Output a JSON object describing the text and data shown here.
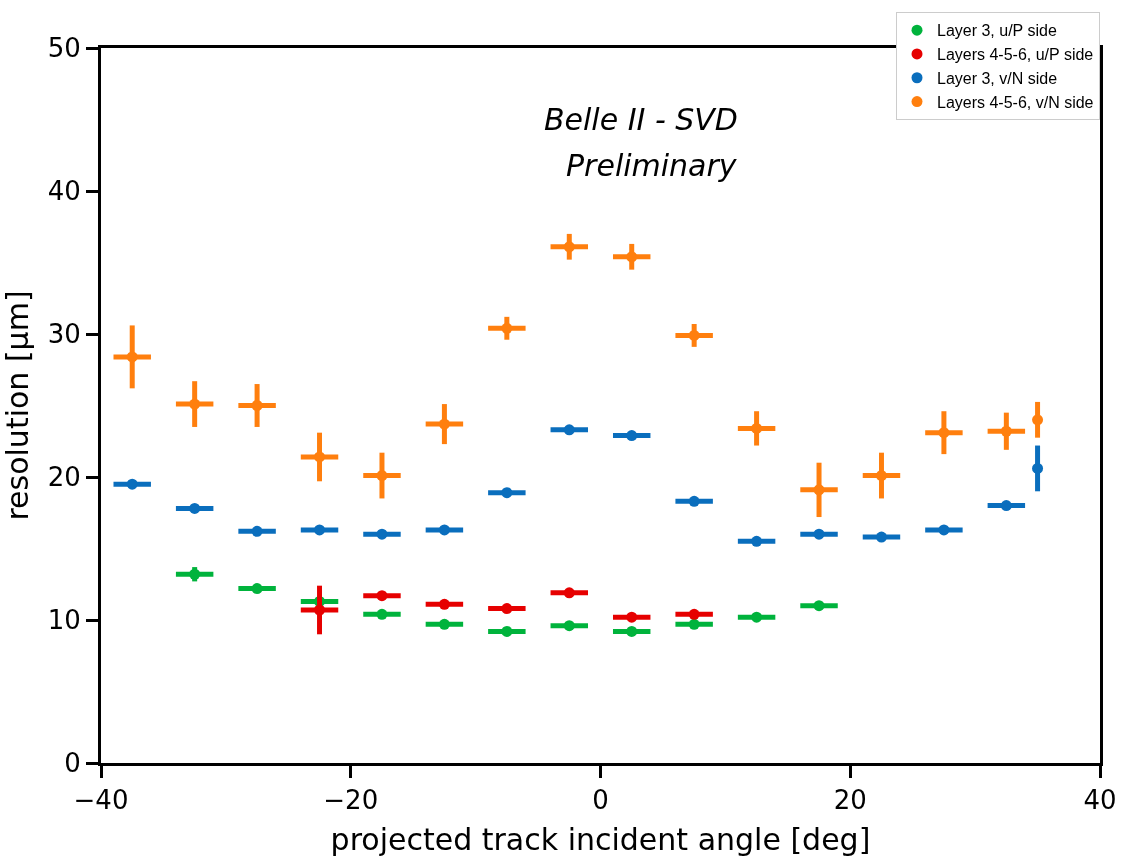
{
  "chart_data": {
    "type": "scatter",
    "xlabel": "projected track incident angle [deg]",
    "ylabel": "resolution [μm]",
    "annotations": [
      "Belle II - SVD",
      "Preliminary"
    ],
    "xlim": [
      -40,
      40
    ],
    "xticks": [
      {
        "value": -40,
        "label": "−40"
      },
      {
        "value": -20,
        "label": "−20"
      },
      0,
      20,
      40
    ],
    "ylim": [
      0,
      50
    ],
    "yticks": [
      0,
      10,
      20,
      30,
      40,
      50
    ],
    "legend": "top right",
    "marker": "circle",
    "series": [
      {
        "name": "Layer 3, u/P side",
        "color": "#00b33c",
        "x": [
          -32.5,
          -27.5,
          -22.5,
          -17.5,
          -12.5,
          -7.5,
          -2.5,
          2.5,
          7.5,
          12.5,
          17.5
        ],
        "values": [
          13.2,
          12.2,
          11.3,
          10.4,
          9.7,
          9.2,
          9.6,
          9.2,
          9.7,
          10.2,
          11.0
        ],
        "errors": [
          0.5,
          0.2,
          null,
          0.2,
          0.2,
          0.2,
          0.2,
          0.2,
          0.2,
          0.2,
          0.2
        ],
        "xerrors": [
          1.5,
          1.5,
          1.5,
          1.5,
          1.5,
          1.5,
          1.5,
          1.5,
          1.5,
          1.5,
          1.5
        ]
      },
      {
        "name": "Layers 4-5-6, u/P side",
        "color": "#e60000",
        "x": [
          -22.5,
          -17.5,
          -12.5,
          -7.5,
          -2.5,
          2.5,
          7.5
        ],
        "values": [
          10.7,
          11.7,
          11.1,
          10.8,
          11.9,
          10.2,
          10.4
        ],
        "errors": [
          1.7,
          0.2,
          0.2,
          0.2,
          0.2,
          0.2,
          0.2
        ],
        "xerrors": [
          1.5,
          1.5,
          1.5,
          1.5,
          1.5,
          1.5,
          1.5
        ]
      },
      {
        "name": "Layer 3, v/N side",
        "color": "#0a6ebd",
        "x": [
          -37.5,
          -32.5,
          -27.5,
          -22.5,
          -17.5,
          -12.5,
          -7.5,
          -2.5,
          2.5,
          7.5,
          12.5,
          17.5,
          22.5,
          27.5,
          32.5,
          35
        ],
        "values": [
          19.5,
          17.8,
          16.2,
          16.3,
          16.0,
          16.3,
          18.9,
          23.3,
          22.9,
          18.3,
          15.5,
          16.0,
          15.8,
          16.3,
          18.0,
          20.6
        ],
        "errors": [
          0.2,
          0.2,
          0.2,
          0.2,
          0.2,
          0.2,
          0.2,
          0.2,
          0.2,
          0.2,
          0.2,
          0.2,
          0.2,
          0.2,
          0.2,
          1.6
        ],
        "xerrors": [
          1.5,
          1.5,
          1.5,
          1.5,
          1.5,
          1.5,
          1.5,
          1.5,
          1.5,
          1.5,
          1.5,
          1.5,
          1.5,
          1.5,
          1.5,
          null
        ]
      },
      {
        "name": "Layers 4-5-6, v/N side",
        "color": "#ff7f0e",
        "x": [
          -37.5,
          -32.5,
          -27.5,
          -22.5,
          -17.5,
          -12.5,
          -7.5,
          -2.5,
          2.5,
          7.5,
          12.5,
          17.5,
          22.5,
          27.5,
          32.5,
          35
        ],
        "values": [
          28.4,
          25.1,
          25.0,
          21.4,
          20.1,
          23.7,
          30.4,
          36.1,
          35.4,
          29.9,
          23.4,
          19.1,
          20.1,
          23.1,
          23.2,
          24.0
        ],
        "errors": [
          2.2,
          1.6,
          1.5,
          1.7,
          1.6,
          1.4,
          0.8,
          0.9,
          0.9,
          0.8,
          1.2,
          1.9,
          1.6,
          1.5,
          1.3,
          1.25
        ],
        "xerrors": [
          1.5,
          1.5,
          1.5,
          1.5,
          1.5,
          1.5,
          1.5,
          1.5,
          1.5,
          1.5,
          1.5,
          1.5,
          1.5,
          1.5,
          1.5,
          null
        ]
      }
    ]
  }
}
